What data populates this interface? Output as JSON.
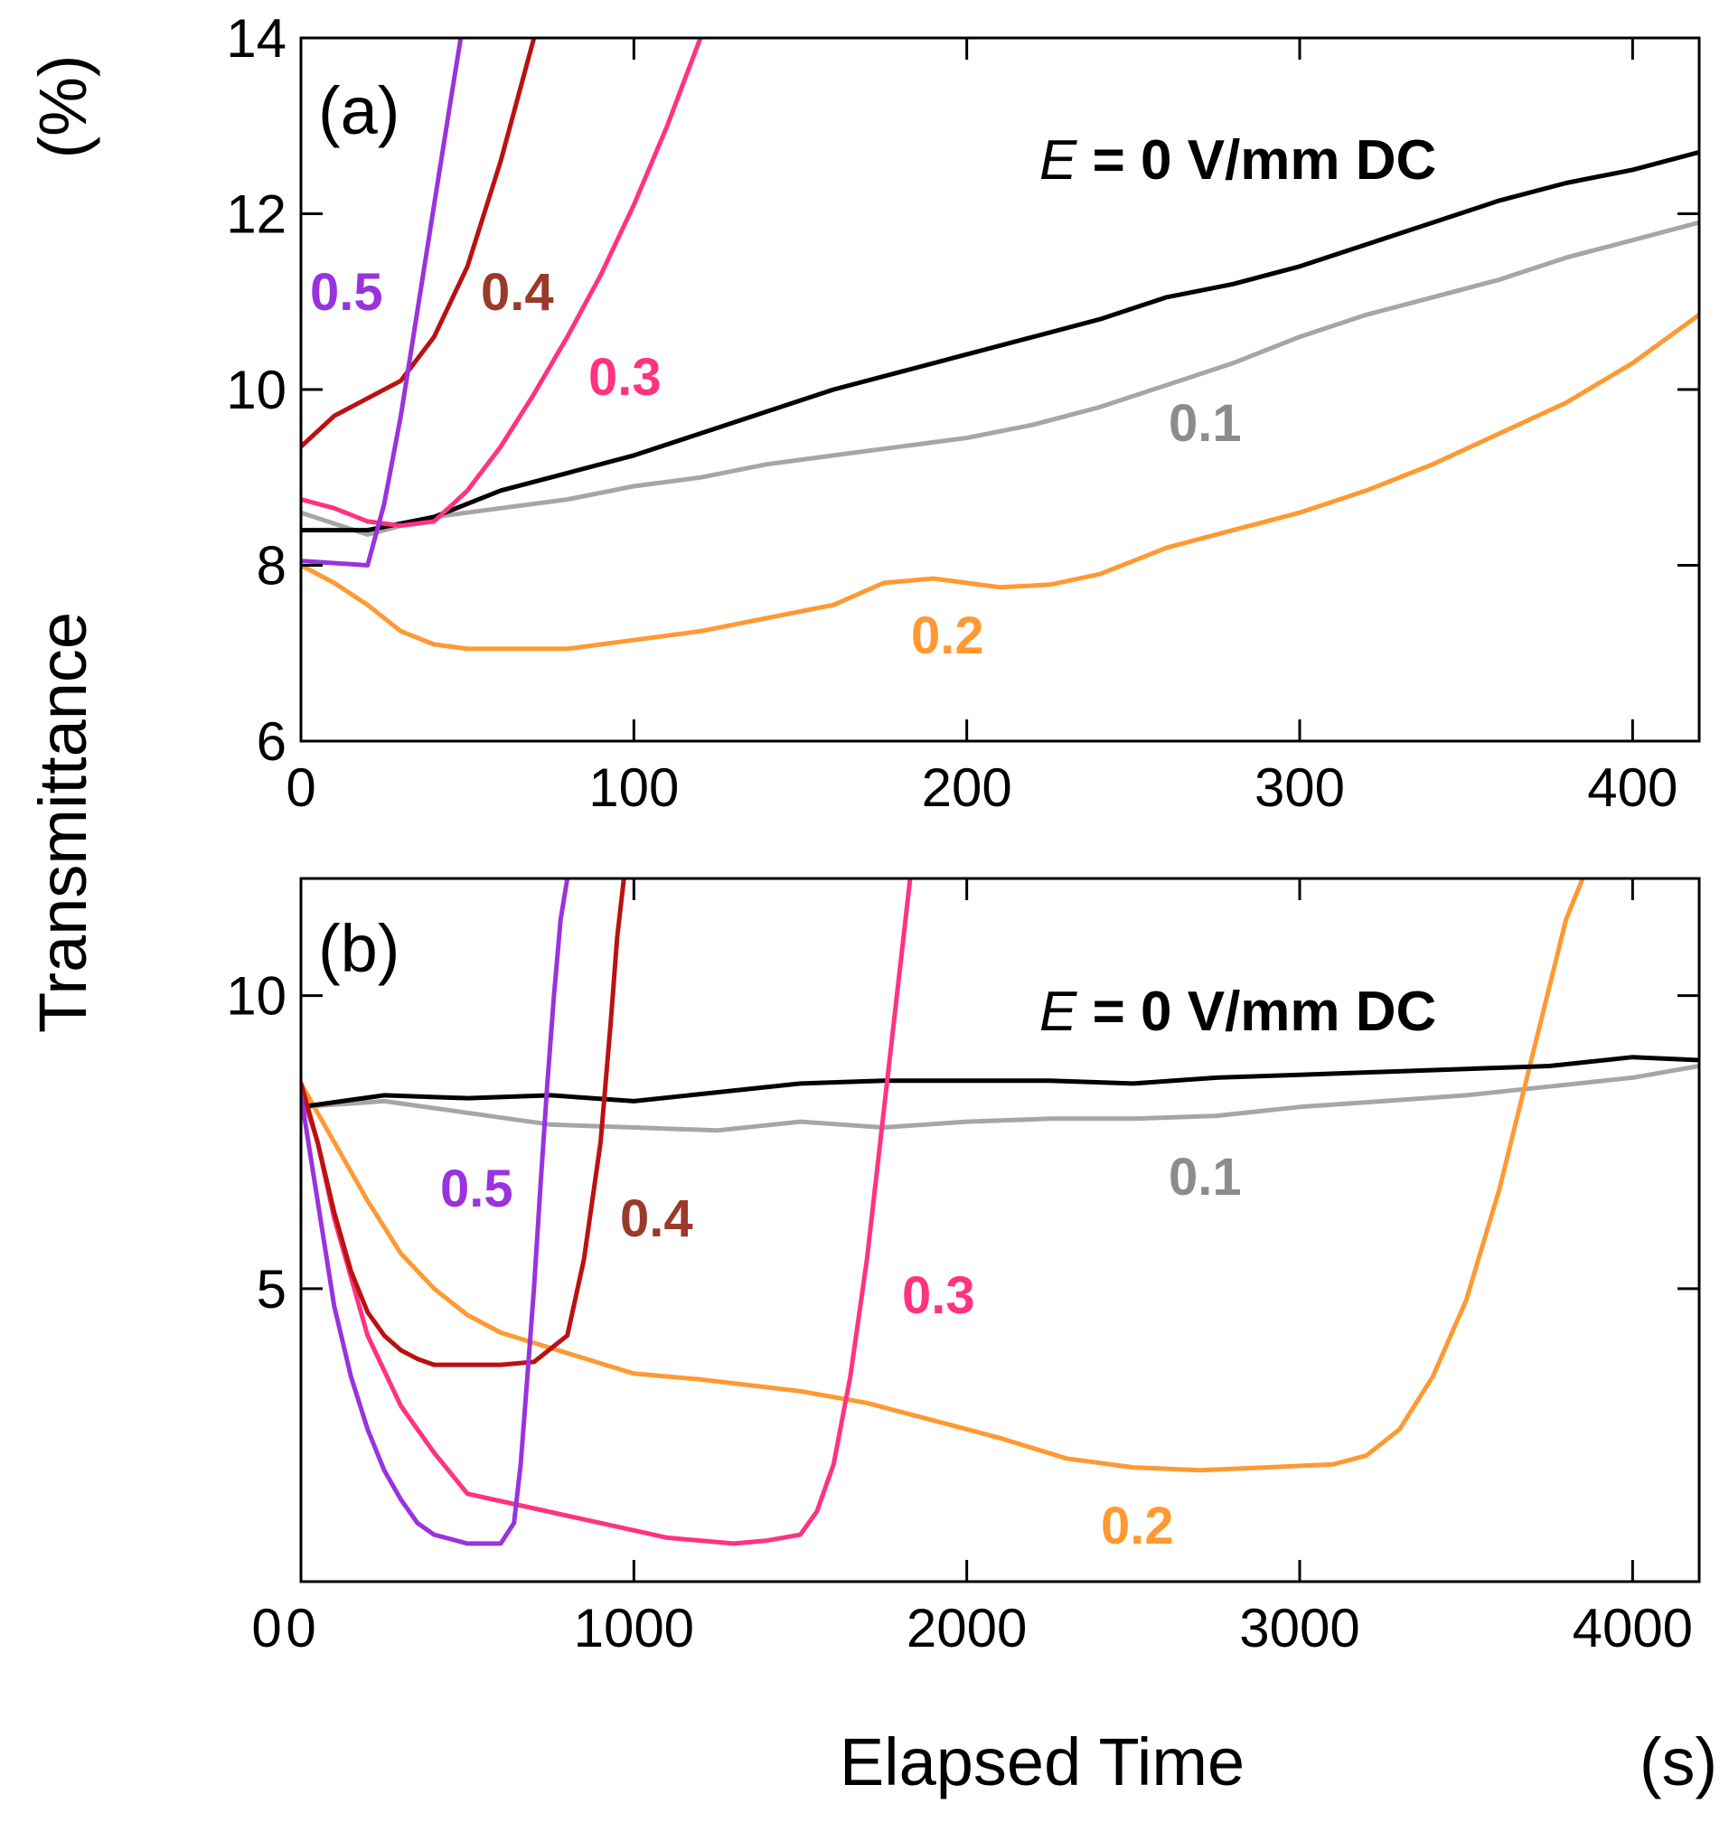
{
  "y_axis_title": "Transmittance",
  "y_axis_unit": "(%)",
  "x_axis_title": "Elapsed Time",
  "x_axis_unit": "(s)",
  "field_symbol": "E",
  "field_rest": " = 0 V/mm DC",
  "series_colors": {
    "0": "#000000",
    "0.1": "#a6a6a6",
    "0.2": "#ff9933",
    "0.3": "#ff3380",
    "0.4": "#bb1111",
    "0.5": "#9933dd"
  },
  "label_colors": {
    "0.1": "#8c8c8c",
    "0.2": "#ff9933",
    "0.3": "#ff3380",
    "0.4": "#9a3a2a",
    "0.5": "#9933dd"
  },
  "chart_data": [
    {
      "type": "line",
      "panel_label": "(a)",
      "xlabel": "Elapsed Time (s)",
      "ylabel": "Transmittance (%)",
      "xlim": [
        0,
        420
      ],
      "ylim": [
        6,
        14
      ],
      "xticks": [
        0,
        100,
        200,
        300,
        400
      ],
      "yticks": [
        6,
        8,
        10,
        12,
        14
      ],
      "series": [
        {
          "name": "0",
          "x": [
            0,
            20,
            40,
            60,
            80,
            100,
            120,
            140,
            160,
            180,
            200,
            220,
            240,
            260,
            280,
            300,
            320,
            340,
            360,
            380,
            400,
            420
          ],
          "values": [
            8.4,
            8.4,
            8.55,
            8.85,
            9.05,
            9.25,
            9.5,
            9.75,
            10.0,
            10.2,
            10.4,
            10.6,
            10.8,
            11.05,
            11.2,
            11.4,
            11.65,
            11.9,
            12.15,
            12.35,
            12.5,
            12.7
          ]
        },
        {
          "name": "0.1",
          "x": [
            0,
            20,
            40,
            60,
            80,
            100,
            120,
            140,
            160,
            180,
            200,
            220,
            240,
            260,
            280,
            300,
            320,
            340,
            360,
            380,
            400,
            420
          ],
          "values": [
            8.6,
            8.35,
            8.55,
            8.65,
            8.75,
            8.9,
            9.0,
            9.15,
            9.25,
            9.35,
            9.45,
            9.6,
            9.8,
            10.05,
            10.3,
            10.6,
            10.85,
            11.05,
            11.25,
            11.5,
            11.7,
            11.9
          ]
        },
        {
          "name": "0.2",
          "x": [
            0,
            10,
            20,
            30,
            40,
            50,
            60,
            80,
            100,
            120,
            140,
            160,
            175,
            190,
            200,
            210,
            225,
            240,
            260,
            280,
            300,
            320,
            340,
            360,
            380,
            400,
            420
          ],
          "values": [
            8.0,
            7.8,
            7.55,
            7.25,
            7.1,
            7.05,
            7.05,
            7.05,
            7.15,
            7.25,
            7.4,
            7.55,
            7.8,
            7.85,
            7.8,
            7.75,
            7.78,
            7.9,
            8.2,
            8.4,
            8.6,
            8.85,
            9.15,
            9.5,
            9.85,
            10.3,
            10.85
          ]
        },
        {
          "name": "0.3",
          "x": [
            0,
            10,
            20,
            30,
            40,
            50,
            60,
            70,
            80,
            90,
            100,
            110,
            120
          ],
          "values": [
            8.75,
            8.65,
            8.5,
            8.45,
            8.5,
            8.85,
            9.35,
            9.95,
            10.6,
            11.3,
            12.1,
            13.0,
            14.0
          ]
        },
        {
          "name": "0.4",
          "x": [
            0,
            10,
            20,
            30,
            40,
            50,
            60,
            70
          ],
          "values": [
            9.35,
            9.7,
            9.9,
            10.1,
            10.6,
            11.4,
            12.6,
            14.0
          ]
        },
        {
          "name": "0.5",
          "x": [
            0,
            20,
            25,
            30,
            35,
            40,
            45,
            48
          ],
          "values": [
            8.05,
            8.0,
            8.7,
            9.7,
            10.9,
            12.1,
            13.3,
            14.0
          ]
        }
      ],
      "annotations": [
        "0.5",
        "0.4",
        "0.3",
        "0.1",
        "0.2"
      ]
    },
    {
      "type": "line",
      "panel_label": "(b)",
      "xlabel": "Elapsed Time (s)",
      "ylabel": "Transmittance (%)",
      "xlim": [
        0,
        4200
      ],
      "ylim": [
        0,
        12
      ],
      "xticks": [
        0,
        1000,
        2000,
        3000,
        4000
      ],
      "yticks": [
        0,
        5,
        10
      ],
      "series": [
        {
          "name": "0",
          "x": [
            0,
            250,
            500,
            750,
            1000,
            1250,
            1500,
            1750,
            2000,
            2250,
            2500,
            2750,
            3000,
            3250,
            3500,
            3750,
            4000,
            4200
          ],
          "values": [
            8.1,
            8.3,
            8.25,
            8.3,
            8.2,
            8.35,
            8.5,
            8.55,
            8.55,
            8.55,
            8.5,
            8.6,
            8.65,
            8.7,
            8.75,
            8.8,
            8.95,
            8.9
          ]
        },
        {
          "name": "0.1",
          "x": [
            0,
            250,
            500,
            750,
            1000,
            1250,
            1500,
            1750,
            2000,
            2250,
            2500,
            2750,
            3000,
            3250,
            3500,
            3750,
            4000,
            4200
          ],
          "values": [
            8.1,
            8.2,
            8.0,
            7.8,
            7.75,
            7.7,
            7.85,
            7.75,
            7.85,
            7.9,
            7.9,
            7.95,
            8.1,
            8.2,
            8.3,
            8.45,
            8.6,
            8.8
          ]
        },
        {
          "name": "0.2",
          "x": [
            0,
            100,
            200,
            300,
            400,
            500,
            600,
            800,
            1000,
            1200,
            1500,
            1700,
            1900,
            2100,
            2300,
            2500,
            2700,
            2900,
            3100,
            3200,
            3300,
            3400,
            3500,
            3600,
            3700,
            3800,
            3850
          ],
          "values": [
            8.5,
            7.5,
            6.5,
            5.6,
            5.0,
            4.55,
            4.25,
            3.9,
            3.55,
            3.45,
            3.25,
            3.05,
            2.75,
            2.45,
            2.1,
            1.95,
            1.9,
            1.95,
            2.0,
            2.15,
            2.6,
            3.5,
            4.8,
            6.7,
            9.0,
            11.3,
            12.0
          ]
        },
        {
          "name": "0.3",
          "x": [
            0,
            50,
            100,
            200,
            300,
            400,
            500,
            700,
            900,
            1100,
            1300,
            1400,
            1500,
            1550,
            1600,
            1650,
            1700,
            1750,
            1800,
            1830
          ],
          "values": [
            8.4,
            7.5,
            6.2,
            4.2,
            3.0,
            2.2,
            1.5,
            1.25,
            1.0,
            0.75,
            0.65,
            0.7,
            0.8,
            1.2,
            2.0,
            3.5,
            5.5,
            8.0,
            10.5,
            12.0
          ]
        },
        {
          "name": "0.4",
          "x": [
            0,
            50,
            100,
            150,
            200,
            250,
            300,
            350,
            400,
            500,
            600,
            700,
            800,
            850,
            900,
            930,
            950,
            970
          ],
          "values": [
            8.5,
            7.5,
            6.3,
            5.3,
            4.6,
            4.2,
            3.95,
            3.8,
            3.7,
            3.7,
            3.7,
            3.75,
            4.2,
            5.5,
            7.5,
            9.5,
            11.0,
            12.0
          ]
        },
        {
          "name": "0.5",
          "x": [
            0,
            50,
            100,
            150,
            200,
            250,
            300,
            350,
            400,
            500,
            600,
            640,
            660,
            680,
            700,
            720,
            740,
            760,
            780,
            800
          ],
          "values": [
            8.3,
            6.5,
            4.7,
            3.5,
            2.6,
            1.9,
            1.4,
            1.0,
            0.8,
            0.65,
            0.65,
            1.0,
            2.0,
            3.5,
            5.0,
            6.8,
            8.5,
            10.0,
            11.3,
            12.0
          ]
        }
      ],
      "annotations": [
        "0.5",
        "0.4",
        "0.3",
        "0.1",
        "0.2"
      ]
    }
  ]
}
